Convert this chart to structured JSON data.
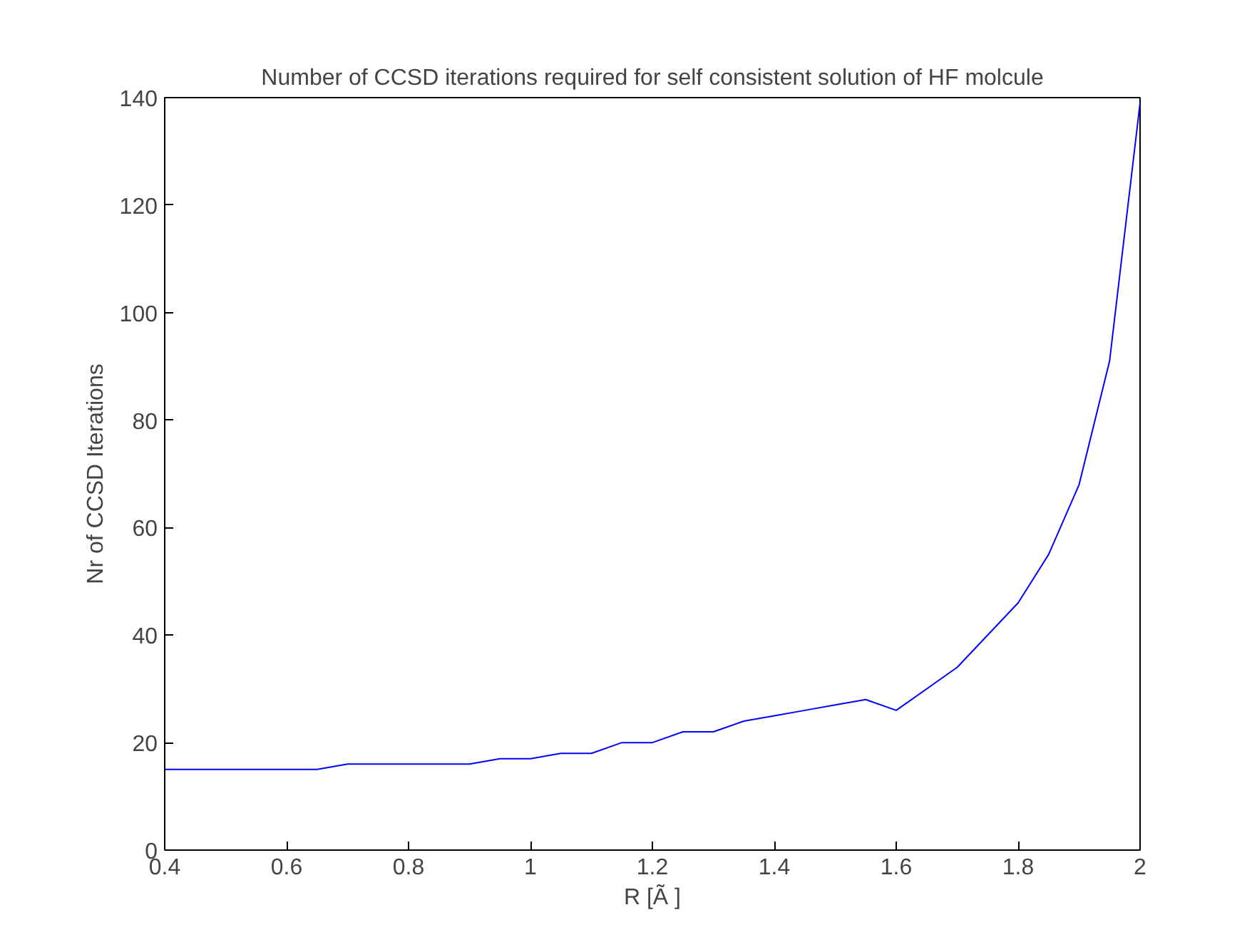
{
  "chart_data": {
    "type": "line",
    "title": "Number of CCSD iterations required for self consistent solution of HF molcule",
    "xlabel": "R [Ã ]",
    "ylabel": "Nr of CCSD Iterations",
    "x": [
      0.4,
      0.45,
      0.5,
      0.55,
      0.6,
      0.65,
      0.7,
      0.75,
      0.8,
      0.85,
      0.9,
      0.95,
      1.0,
      1.05,
      1.1,
      1.15,
      1.2,
      1.25,
      1.3,
      1.35,
      1.4,
      1.45,
      1.5,
      1.55,
      1.6,
      1.7,
      1.8,
      1.85,
      1.9,
      1.95,
      2.0
    ],
    "series": [
      {
        "color": "#0000ff",
        "values": [
          15,
          15,
          15,
          15,
          15,
          15,
          16,
          16,
          16,
          16,
          16,
          17,
          17,
          18,
          18,
          20,
          20,
          22,
          22,
          24,
          25,
          26,
          27,
          28,
          26,
          34,
          46,
          55,
          68,
          91,
          139
        ]
      }
    ],
    "xlim": [
      0.4,
      2
    ],
    "ylim": [
      0,
      140
    ],
    "xticks": [
      0.4,
      0.6,
      0.8,
      1,
      1.2,
      1.4,
      1.6,
      1.8,
      2
    ],
    "yticks": [
      0,
      20,
      40,
      60,
      80,
      100,
      120,
      140
    ],
    "grid": false,
    "line_style": "solid"
  }
}
